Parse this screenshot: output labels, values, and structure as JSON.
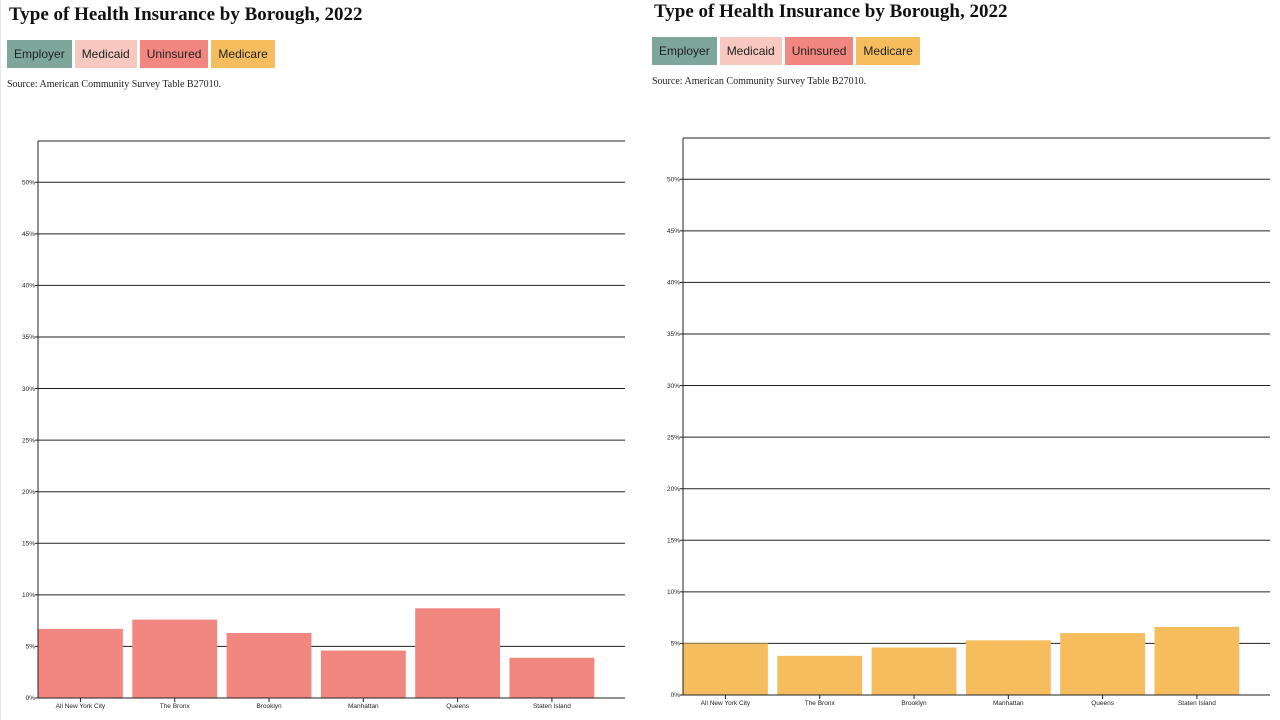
{
  "charts": [
    {
      "title": "Type of Health Insurance by Borough, 2022",
      "source": "Source: American Community Survey Table B27010.",
      "buttons": [
        {
          "label": "Employer",
          "color": "#7fa69b"
        },
        {
          "label": "Medicaid",
          "color": "#f6c8c0"
        },
        {
          "label": "Uninsured",
          "color": "#f28680"
        },
        {
          "label": "Medicare",
          "color": "#f5bd5e"
        }
      ]
    },
    {
      "title": "Type of Health Insurance by Borough, 2022",
      "source": "Source: American Community Survey Table B27010.",
      "buttons": [
        {
          "label": "Employer",
          "color": "#7fa69b"
        },
        {
          "label": "Medicaid",
          "color": "#f6c8c0"
        },
        {
          "label": "Uninsured",
          "color": "#f28680"
        },
        {
          "label": "Medicare",
          "color": "#f5bd5e"
        }
      ]
    }
  ],
  "chart_data": [
    {
      "type": "bar",
      "title": "Type of Health Insurance by Borough, 2022",
      "categories": [
        "All New York City",
        "The Bronx",
        "Brooklyn",
        "Manhattan",
        "Queens",
        "Staten Island"
      ],
      "series": [
        {
          "name": "Uninsured",
          "values": [
            6.7,
            7.6,
            6.3,
            4.6,
            8.7,
            3.9
          ],
          "color": "#f28680"
        }
      ],
      "y_ticks": [
        "0%",
        "5%",
        "10%",
        "15%",
        "20%",
        "25%",
        "30%",
        "35%",
        "40%",
        "45%",
        "50%"
      ],
      "ylim": [
        0,
        54
      ],
      "grid": true
    },
    {
      "type": "bar",
      "title": "Type of Health Insurance by Borough, 2022",
      "categories": [
        "All New York City",
        "The Bronx",
        "Brooklyn",
        "Manhattan",
        "Queens",
        "Staten Island"
      ],
      "series": [
        {
          "name": "Medicare",
          "values": [
            5.0,
            3.8,
            4.6,
            5.3,
            6.0,
            6.6
          ],
          "color": "#f5bd5e"
        }
      ],
      "y_ticks": [
        "0%",
        "5%",
        "10%",
        "15%",
        "20%",
        "25%",
        "30%",
        "35%",
        "40%",
        "45%",
        "50%"
      ],
      "ylim": [
        0,
        54
      ],
      "grid": true
    }
  ]
}
